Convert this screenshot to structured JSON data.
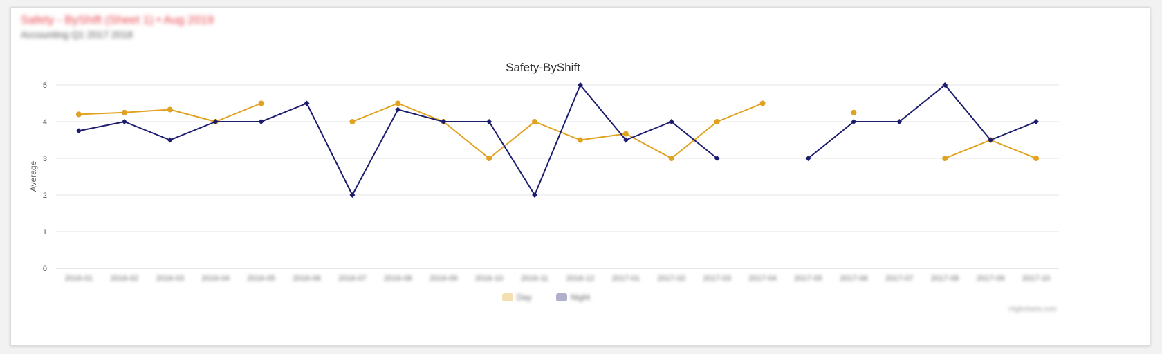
{
  "header": {
    "title": "Safety - ByShift (Sheet 1) • Aug 2019",
    "subtitle": "Accounting Q1 2017 2018"
  },
  "chart_data": {
    "type": "line",
    "title": "Safety-ByShift",
    "ylabel": "Average",
    "xlabel": "",
    "ylim": [
      0,
      5
    ],
    "yticks": [
      0,
      1,
      2,
      3,
      4,
      5
    ],
    "grid": true,
    "legend_position": "bottom",
    "categories": [
      "2016-01",
      "2016-02",
      "2016-03",
      "2016-04",
      "2016-05",
      "2016-06",
      "2016-07",
      "2016-08",
      "2016-09",
      "2016-10",
      "2016-11",
      "2016-12",
      "2017-01",
      "2017-02",
      "2017-03",
      "2017-04",
      "2017-05",
      "2017-06",
      "2017-07",
      "2017-08",
      "2017-09",
      "2017-10"
    ],
    "series": [
      {
        "name": "Day",
        "color": "#e0a220",
        "marker": "circle",
        "values": [
          4.2,
          4.25,
          4.33,
          4.0,
          4.5,
          null,
          4.0,
          4.5,
          4.0,
          3.0,
          4.0,
          3.5,
          3.67,
          3.0,
          4.0,
          4.5,
          null,
          4.25,
          null,
          3.0,
          3.5,
          3.0
        ]
      },
      {
        "name": "Night",
        "color": "#1c1c6e",
        "marker": "diamond",
        "values": [
          3.75,
          4.0,
          3.5,
          4.0,
          4.0,
          4.5,
          2.0,
          4.33,
          4.0,
          4.0,
          2.0,
          5.0,
          3.5,
          4.0,
          3.0,
          null,
          3.0,
          4.0,
          4.0,
          5.0,
          3.5,
          4.0
        ]
      }
    ]
  },
  "credits": "Highcharts.com"
}
